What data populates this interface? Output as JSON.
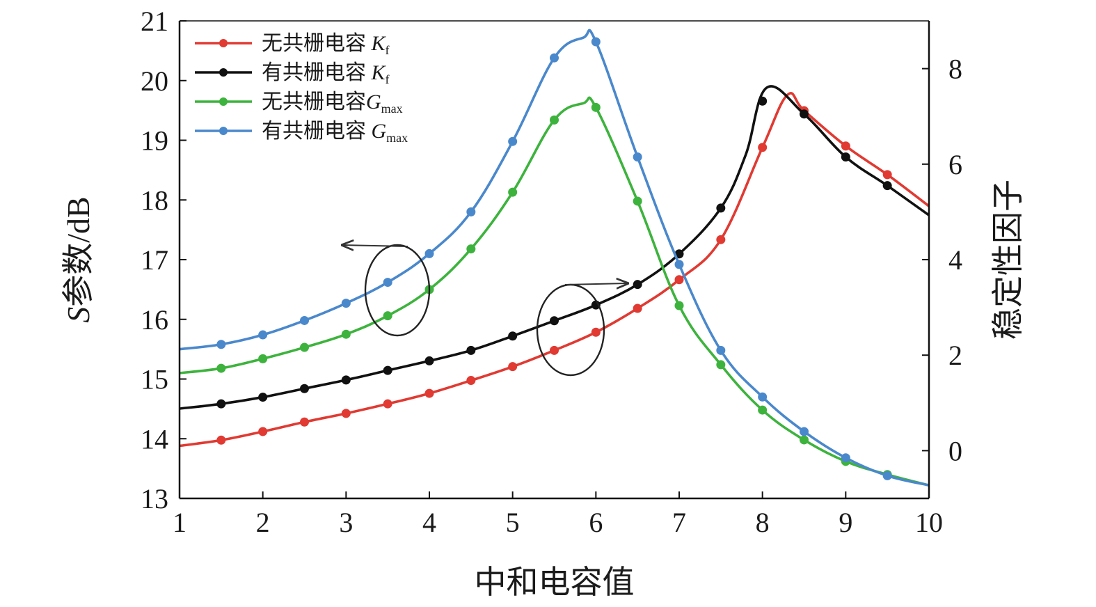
{
  "chart_data": {
    "type": "line",
    "title": "",
    "xlabel": "中和电容值",
    "ylabel_left": "S参数/dB",
    "ylabel_left_italic": "S",
    "ylabel_left_rest": "参数/dB",
    "ylabel_right": "稳定性因子",
    "xlim": [
      1,
      10
    ],
    "ylim_left": [
      13,
      21
    ],
    "ylim_right": [
      -1,
      9
    ],
    "xticks": [
      "1",
      "2",
      "3",
      "4",
      "5",
      "6",
      "7",
      "8",
      "9",
      "10"
    ],
    "yticks_left": [
      "13",
      "14",
      "15",
      "16",
      "17",
      "18",
      "19",
      "20",
      "21"
    ],
    "yticks_right": [
      "0",
      "2",
      "4",
      "6",
      "8"
    ],
    "legend_position": "top-left",
    "series": [
      {
        "name": "无共栅电容 Kf",
        "label_main": "无共栅电容 ",
        "label_symbol": "K",
        "label_sub": "f",
        "axis": "right",
        "color": "#e03a32",
        "x": [
          1,
          1.5,
          2,
          2.5,
          3,
          3.5,
          4,
          4.5,
          5,
          5.5,
          6,
          6.5,
          7,
          7.5,
          8,
          8.3,
          8.5,
          9,
          9.5,
          10
        ],
        "y": [
          0.1,
          0.22,
          0.4,
          0.6,
          0.78,
          0.98,
          1.2,
          1.47,
          1.76,
          2.1,
          2.48,
          2.98,
          3.58,
          4.42,
          6.35,
          7.45,
          7.12,
          6.38,
          5.78,
          5.12
        ],
        "markers": [
          1.5,
          2,
          2.5,
          3,
          3.5,
          4,
          4.5,
          5,
          5.5,
          6,
          6.5,
          7,
          7.5,
          8,
          8.5,
          9,
          9.5
        ]
      },
      {
        "name": "有共栅电容 Kf",
        "label_main": "有共栅电容 ",
        "label_symbol": "K",
        "label_sub": "f",
        "axis": "right",
        "color": "#111111",
        "x": [
          1,
          1.5,
          2,
          2.5,
          3,
          3.5,
          4,
          4.5,
          5,
          5.5,
          6,
          6.5,
          7,
          7.5,
          7.8,
          8.05,
          8.5,
          9,
          9.5,
          10
        ],
        "y": [
          0.88,
          0.98,
          1.12,
          1.3,
          1.48,
          1.68,
          1.88,
          2.1,
          2.4,
          2.72,
          3.05,
          3.48,
          4.12,
          5.08,
          6.2,
          7.6,
          7.05,
          6.15,
          5.55,
          4.93
        ],
        "markers": [
          1.5,
          2,
          2.5,
          3,
          3.5,
          4,
          4.5,
          5,
          5.5,
          6,
          6.5,
          7,
          7.5,
          8,
          8.5,
          9,
          9.5
        ]
      },
      {
        "name": "无共栅电容Gmax",
        "label_main": "无共栅电容",
        "label_symbol": "G",
        "label_sub": "max",
        "axis": "left",
        "color": "#3db33d",
        "x": [
          1,
          1.5,
          2,
          2.5,
          3,
          3.5,
          4,
          4.5,
          5,
          5.5,
          5.85,
          6,
          6.5,
          7,
          7.5,
          8,
          8.5,
          9,
          9.5,
          10
        ],
        "y": [
          15.1,
          15.18,
          15.34,
          15.53,
          15.75,
          16.06,
          16.5,
          17.18,
          18.13,
          19.34,
          19.62,
          19.55,
          17.98,
          16.23,
          15.24,
          14.48,
          13.98,
          13.62,
          13.4,
          13.22
        ],
        "markers": [
          1.5,
          2,
          2.5,
          3,
          3.5,
          4,
          4.5,
          5,
          5.5,
          6,
          6.5,
          7,
          7.5,
          8,
          8.5,
          9,
          9.5
        ]
      },
      {
        "name": "有共栅电容 Gmax",
        "label_main": "有共栅电容 ",
        "label_symbol": "G",
        "label_sub": "max",
        "axis": "left",
        "color": "#4a88cc",
        "x": [
          1,
          1.5,
          2,
          2.5,
          3,
          3.5,
          4,
          4.5,
          5,
          5.5,
          5.85,
          6,
          6.5,
          7,
          7.5,
          8,
          8.5,
          9,
          9.5,
          10
        ],
        "y": [
          15.5,
          15.58,
          15.74,
          15.98,
          16.27,
          16.62,
          17.1,
          17.8,
          18.98,
          20.38,
          20.72,
          20.65,
          18.72,
          16.92,
          15.48,
          14.7,
          14.12,
          13.68,
          13.38,
          13.22
        ],
        "markers": [
          1.5,
          2,
          2.5,
          3,
          3.5,
          4,
          4.5,
          5,
          5.5,
          6,
          6.5,
          7,
          7.5,
          8,
          8.5,
          9,
          9.5
        ]
      }
    ],
    "annotations": [
      {
        "type": "ellipse-arrow",
        "target_axis": "left",
        "ellipse_center": [
          3.55,
          16.5
        ],
        "arrow_to": [
          3.0,
          17.25
        ]
      },
      {
        "type": "ellipse-arrow",
        "target_axis": "right",
        "ellipse_center": [
          5.7,
          2.7
        ],
        "arrow_to": [
          6.4,
          3.5
        ]
      }
    ]
  }
}
